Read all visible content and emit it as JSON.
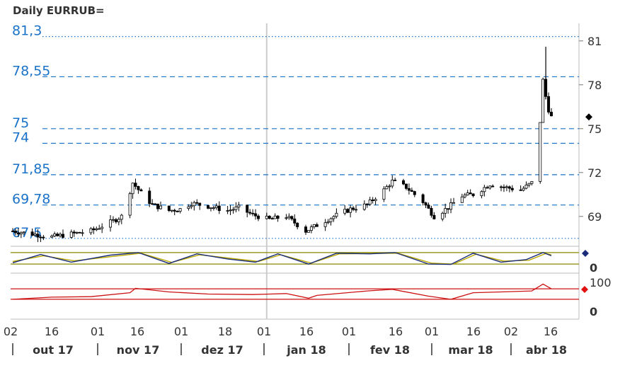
{
  "title": "Daily EURRUB=",
  "colors": {
    "candle": "#000000",
    "level_label": "#1a73c8",
    "level_line": "#1a73c8",
    "stoch_fast": "#1a2b7a",
    "stoch_slow": "#b8a800",
    "stoch_bounds": "#8a8a00",
    "rsi_line": "#cc1111",
    "grid_vertical": "#cccccc",
    "axis_text": "#333333"
  },
  "price_levels": [
    {
      "label": "81,3",
      "value": 81.3,
      "style": "dotted"
    },
    {
      "label": "78,55",
      "value": 78.55,
      "style": "dashed"
    },
    {
      "label": "75",
      "value": 75,
      "style": "dashed"
    },
    {
      "label": "74",
      "value": 74,
      "style": "dashed"
    },
    {
      "label": "71,85",
      "value": 71.85,
      "style": "dashed"
    },
    {
      "label": "69,78",
      "value": 69.78,
      "style": "dashed"
    },
    {
      "label": "67,5",
      "value": 67.5,
      "style": "dotted"
    }
  ],
  "right_axis_ticks": [
    "81",
    "78",
    "75",
    "72",
    "69"
  ],
  "current_marker": {
    "price": 75.8
  },
  "stoch_axis": {
    "tick": "0"
  },
  "rsi_axis": {
    "ticks": [
      "100",
      "0"
    ],
    "upper_bound": 70,
    "lower_bound": 30
  },
  "x_day_ticks": [
    "02",
    "16",
    "01",
    "16",
    "01",
    "18",
    "01",
    "16",
    "01",
    "16",
    "01",
    "16",
    "02",
    "16"
  ],
  "x_month_labels": [
    "out 17",
    "nov 17",
    "dez 17",
    "jan 18",
    "fev 18",
    "mar 18",
    "abr 18"
  ],
  "chart_data": {
    "type": "candlestick",
    "title": "Daily EURRUB=",
    "ylim": [
      67.2,
      82.2
    ],
    "x_range": [
      "2017-10-02",
      "2018-04-13"
    ],
    "close_path": [
      [
        "2017-10-02",
        68.0
      ],
      [
        "2017-10-09",
        67.8
      ],
      [
        "2017-10-16",
        67.6
      ],
      [
        "2017-10-23",
        67.8
      ],
      [
        "2017-10-30",
        68.0
      ],
      [
        "2017-11-06",
        68.6
      ],
      [
        "2017-11-10",
        69.0
      ],
      [
        "2017-11-14",
        71.3
      ],
      [
        "2017-11-17",
        70.6
      ],
      [
        "2017-11-21",
        69.8
      ],
      [
        "2017-11-27",
        69.4
      ],
      [
        "2017-12-01",
        69.5
      ],
      [
        "2017-12-05",
        69.9
      ],
      [
        "2017-12-11",
        69.7
      ],
      [
        "2017-12-18",
        69.4
      ],
      [
        "2017-12-22",
        69.6
      ],
      [
        "2017-12-27",
        69.1
      ],
      [
        "2018-01-02",
        68.8
      ],
      [
        "2018-01-08",
        69.0
      ],
      [
        "2018-01-15",
        68.0
      ],
      [
        "2018-01-19",
        68.4
      ],
      [
        "2018-01-25",
        69.0
      ],
      [
        "2018-01-31",
        69.5
      ],
      [
        "2018-02-06",
        69.8
      ],
      [
        "2018-02-12",
        70.8
      ],
      [
        "2018-02-15",
        71.4
      ],
      [
        "2018-02-20",
        71.0
      ],
      [
        "2018-02-26",
        70.0
      ],
      [
        "2018-03-02",
        69.0
      ],
      [
        "2018-03-07",
        69.6
      ],
      [
        "2018-03-12",
        70.4
      ],
      [
        "2018-03-16",
        70.5
      ],
      [
        "2018-03-22",
        71.2
      ],
      [
        "2018-03-27",
        71.0
      ],
      [
        "2018-04-02",
        70.8
      ],
      [
        "2018-04-06",
        71.3
      ],
      [
        "2018-04-09",
        75.5
      ],
      [
        "2018-04-10",
        78.3
      ],
      [
        "2018-04-11",
        77.2
      ],
      [
        "2018-04-12",
        76.3
      ],
      [
        "2018-04-13",
        75.8
      ]
    ],
    "stochastic": {
      "fast_path": [
        [
          "2017-10-02",
          15
        ],
        [
          "2017-10-12",
          80
        ],
        [
          "2017-10-23",
          20
        ],
        [
          "2017-11-06",
          75
        ],
        [
          "2017-11-16",
          95
        ],
        [
          "2017-11-27",
          10
        ],
        [
          "2017-12-07",
          85
        ],
        [
          "2017-12-18",
          45
        ],
        [
          "2017-12-28",
          20
        ],
        [
          "2018-01-05",
          85
        ],
        [
          "2018-01-16",
          5
        ],
        [
          "2018-01-26",
          90
        ],
        [
          "2018-02-07",
          85
        ],
        [
          "2018-02-16",
          95
        ],
        [
          "2018-02-28",
          5
        ],
        [
          "2018-03-08",
          2
        ],
        [
          "2018-03-16",
          90
        ],
        [
          "2018-03-26",
          20
        ],
        [
          "2018-04-04",
          40
        ],
        [
          "2018-04-10",
          95
        ],
        [
          "2018-04-13",
          70
        ]
      ],
      "slow_path": [
        [
          "2017-10-02",
          25
        ],
        [
          "2017-10-13",
          70
        ],
        [
          "2017-10-24",
          30
        ],
        [
          "2017-11-07",
          65
        ],
        [
          "2017-11-17",
          90
        ],
        [
          "2017-11-28",
          18
        ],
        [
          "2017-12-08",
          78
        ],
        [
          "2017-12-19",
          50
        ],
        [
          "2017-12-29",
          25
        ],
        [
          "2018-01-06",
          78
        ],
        [
          "2018-01-17",
          12
        ],
        [
          "2018-01-27",
          85
        ],
        [
          "2018-02-08",
          88
        ],
        [
          "2018-02-17",
          90
        ],
        [
          "2018-03-01",
          12
        ],
        [
          "2018-03-09",
          5
        ],
        [
          "2018-03-17",
          82
        ],
        [
          "2018-03-27",
          28
        ],
        [
          "2018-04-05",
          35
        ],
        [
          "2018-04-11",
          88
        ],
        [
          "2018-04-13",
          78
        ]
      ]
    },
    "rsi_path": [
      [
        "2017-10-02",
        30
      ],
      [
        "2017-10-16",
        38
      ],
      [
        "2017-10-30",
        40
      ],
      [
        "2017-11-13",
        55
      ],
      [
        "2017-11-15",
        72
      ],
      [
        "2017-11-27",
        58
      ],
      [
        "2017-12-11",
        50
      ],
      [
        "2017-12-27",
        48
      ],
      [
        "2018-01-08",
        52
      ],
      [
        "2018-01-16",
        34
      ],
      [
        "2018-01-19",
        45
      ],
      [
        "2018-02-06",
        62
      ],
      [
        "2018-02-15",
        68
      ],
      [
        "2018-02-28",
        42
      ],
      [
        "2018-03-08",
        30
      ],
      [
        "2018-03-16",
        55
      ],
      [
        "2018-03-26",
        58
      ],
      [
        "2018-04-06",
        62
      ],
      [
        "2018-04-10",
        88
      ],
      [
        "2018-04-13",
        70
      ]
    ]
  }
}
